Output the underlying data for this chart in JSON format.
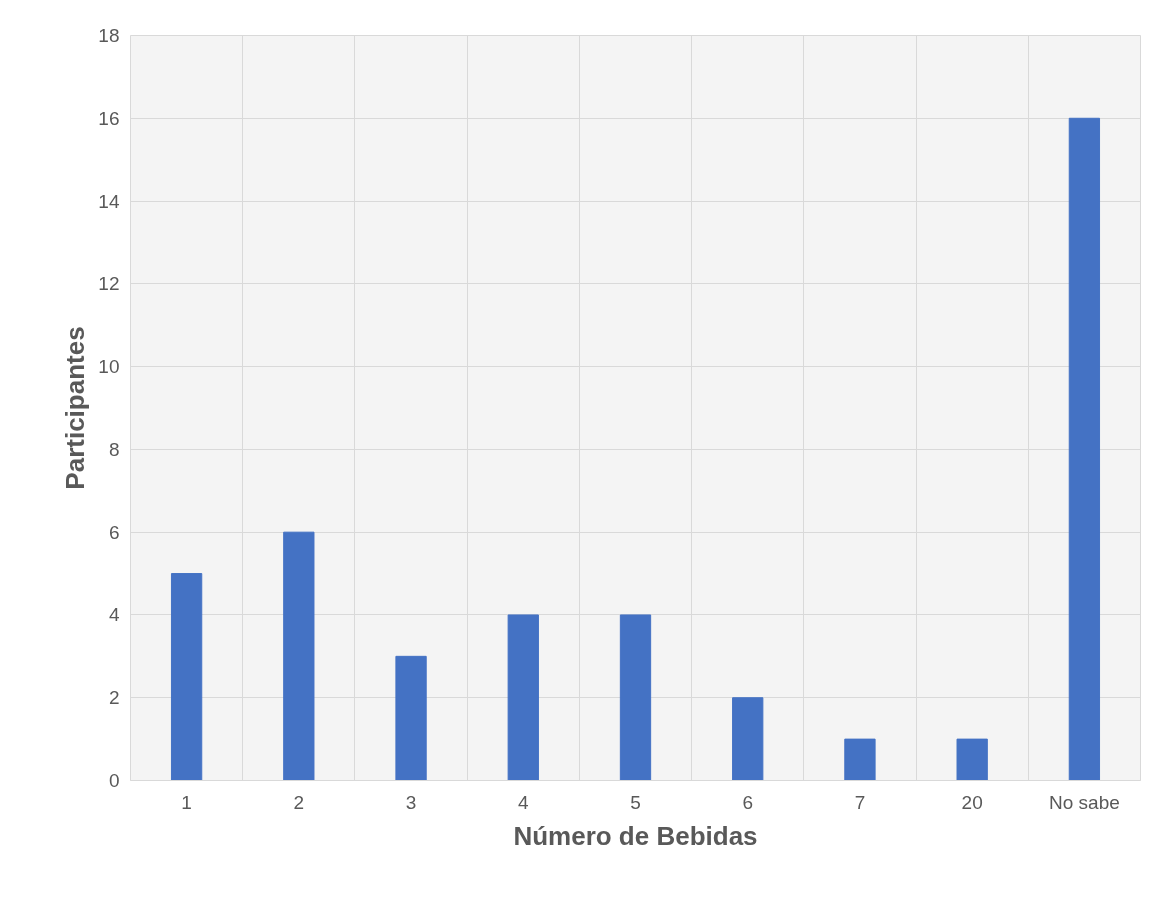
{
  "chart_data": {
    "type": "bar",
    "xlabel": "Número de Bebidas",
    "ylabel": "Participantes",
    "categories": [
      "1",
      "2",
      "3",
      "4",
      "5",
      "6",
      "7",
      "20",
      "No sabe"
    ],
    "values": [
      5,
      6,
      3,
      4,
      4,
      2,
      1,
      1,
      16
    ],
    "color": "#4472c4",
    "ylim": [
      0,
      18
    ],
    "yticks": [
      0,
      2,
      4,
      6,
      8,
      10,
      12,
      14,
      16,
      18
    ],
    "grid": true
  }
}
